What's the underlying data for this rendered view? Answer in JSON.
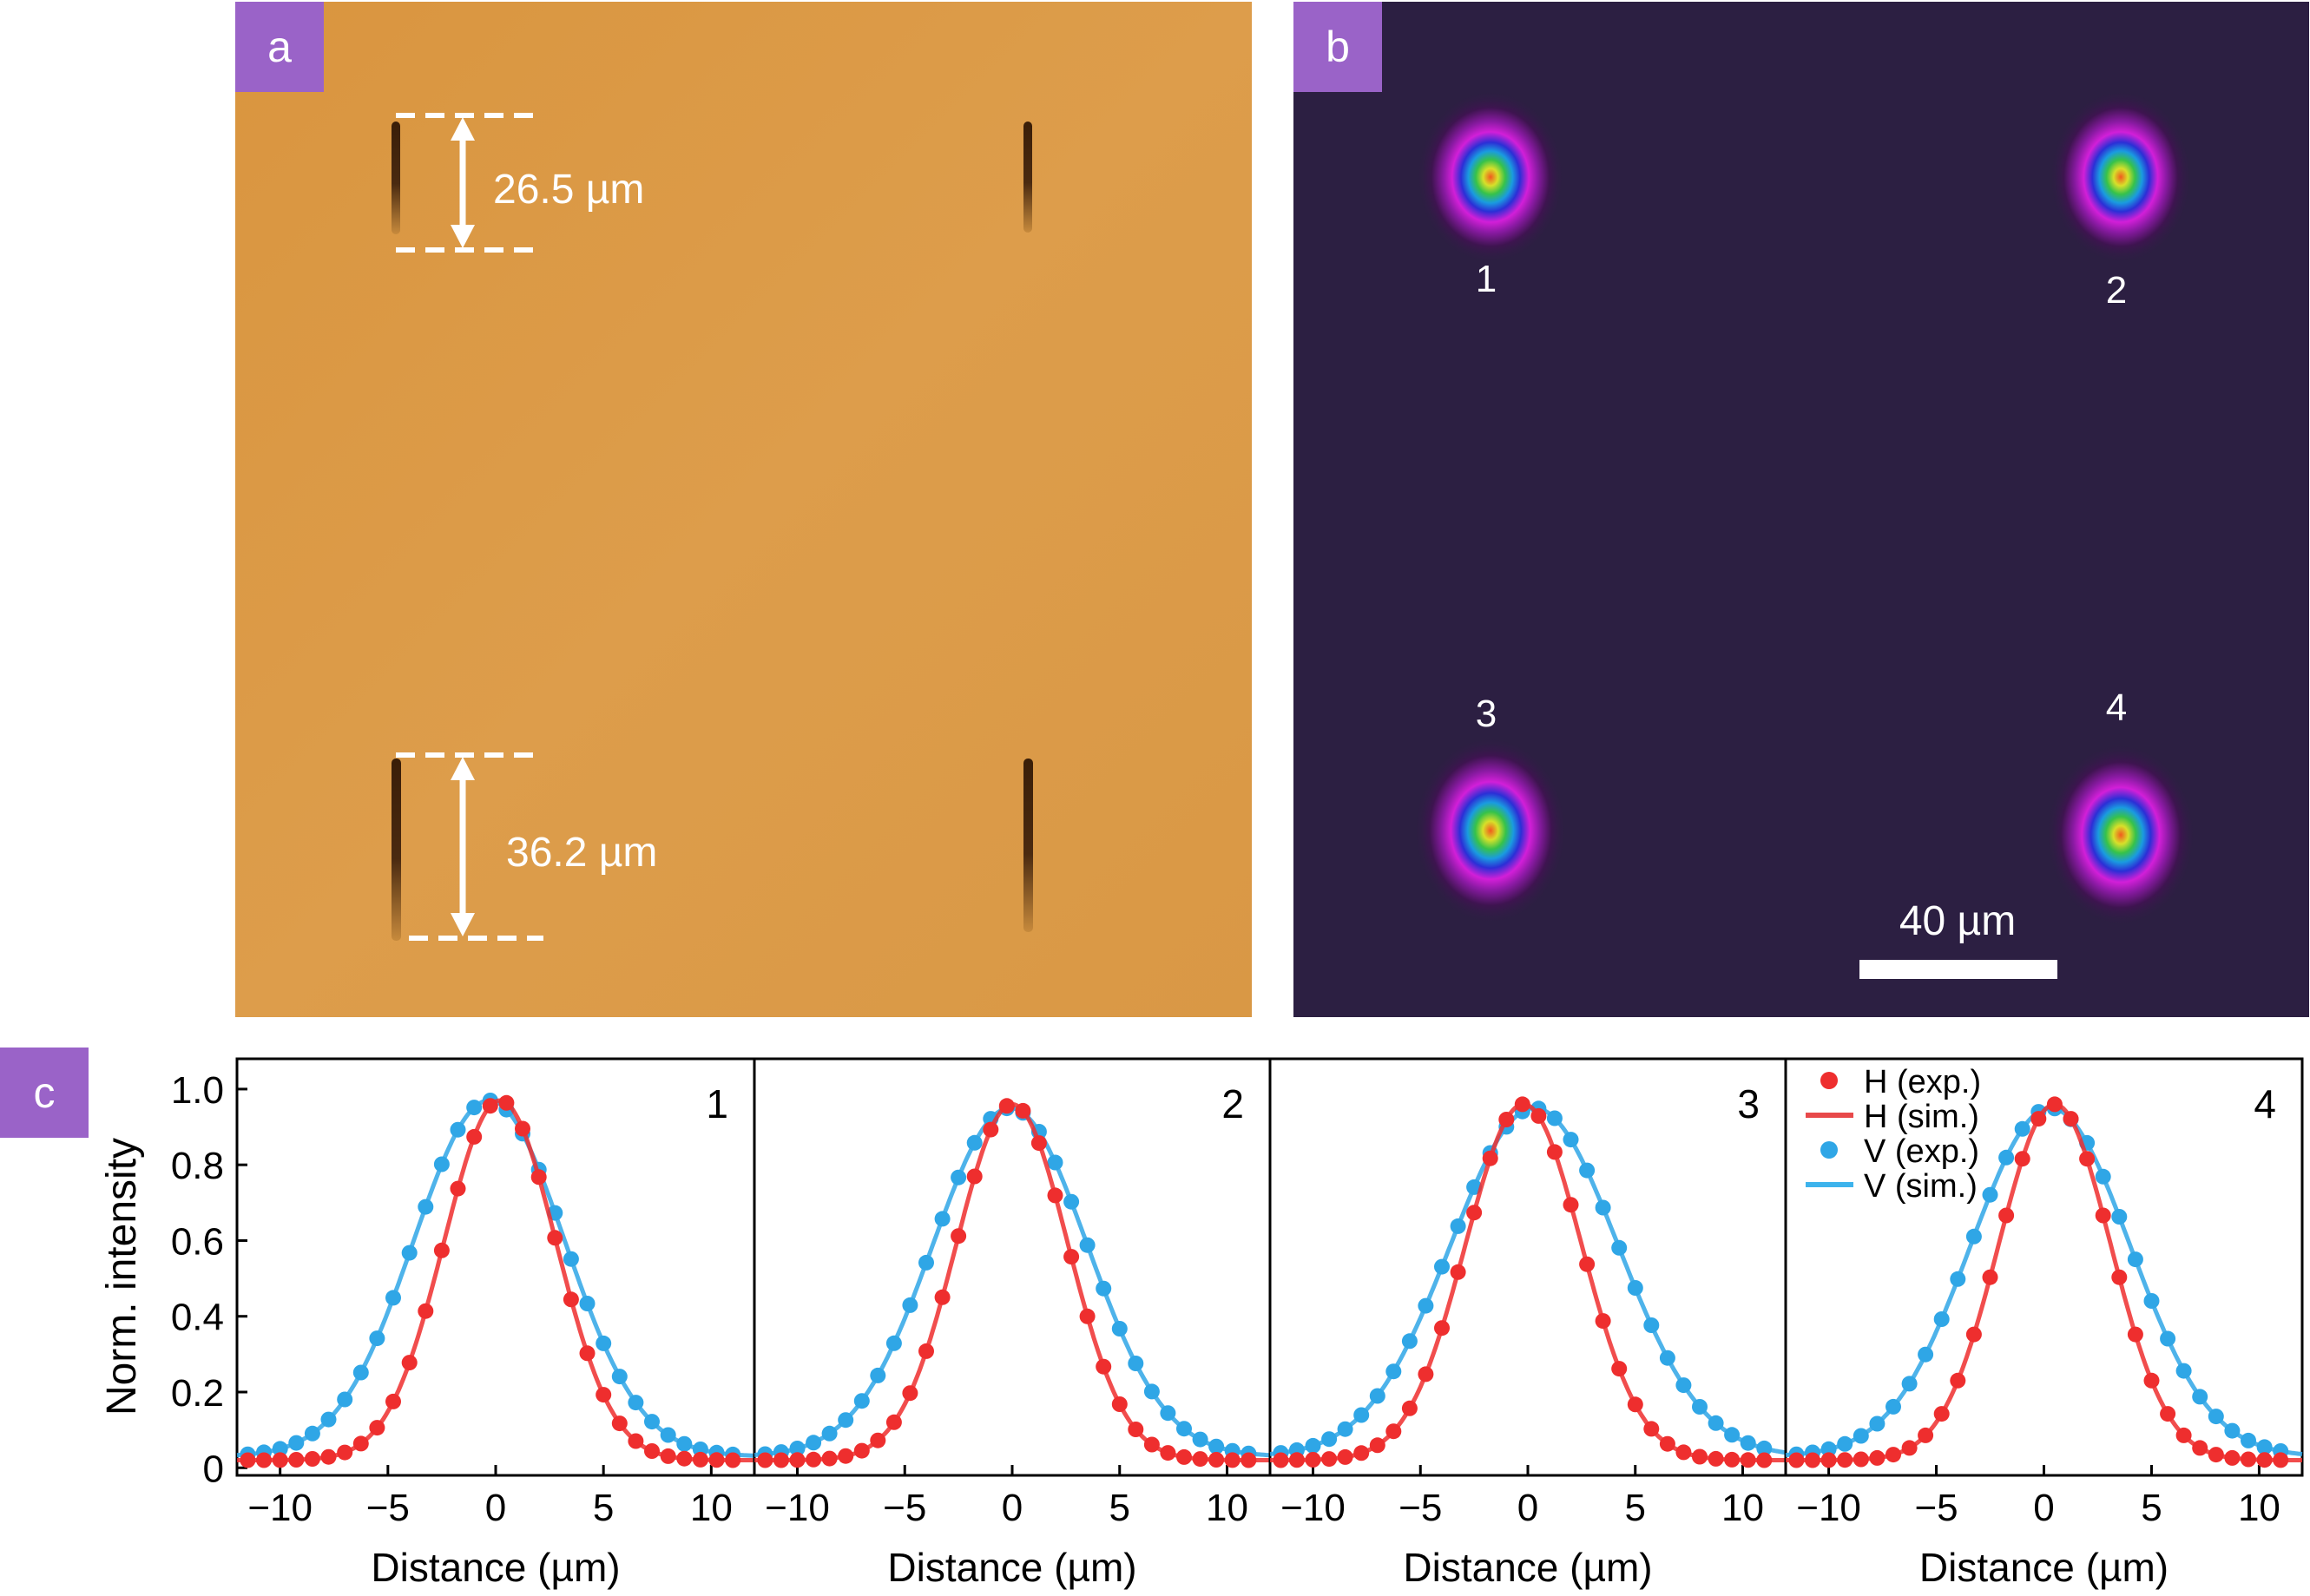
{
  "panels": {
    "a": {
      "label": "a",
      "annotations": [
        "26.5 µm",
        "36.2 µm"
      ],
      "background_color": "#dc9a46"
    },
    "b": {
      "label": "b",
      "spot_labels": [
        "1",
        "2",
        "3",
        "4"
      ],
      "scale_bar": "40 µm",
      "background_color": "#2c1f42"
    },
    "c": {
      "label": "c"
    }
  },
  "chart_data": {
    "type": "scatter",
    "ylabel": "Norm. intensity",
    "xlabel": "Distance (µm)",
    "xlim": [
      -12,
      12
    ],
    "ylim": [
      -0.02,
      1.08
    ],
    "x_ticks": [
      "−10",
      "−5",
      "0",
      "5",
      "10"
    ],
    "x_tick_values": [
      -10,
      -5,
      0,
      5,
      10
    ],
    "y_ticks": [
      "0",
      "0.2",
      "0.4",
      "0.6",
      "0.8",
      "1.0"
    ],
    "y_tick_values": [
      0,
      0.2,
      0.4,
      0.6,
      0.8,
      1.0
    ],
    "legend": {
      "placement": "top-left of subplot 4",
      "entries": [
        {
          "label": "H (exp.)",
          "kind": "marker",
          "color": "#ee2e2e"
        },
        {
          "label": "H (sim.)",
          "kind": "line",
          "color": "#e8494a"
        },
        {
          "label": "V (exp.)",
          "kind": "marker",
          "color": "#2fa6e6"
        },
        {
          "label": "V (sim.)",
          "kind": "line",
          "color": "#3db3ec"
        }
      ]
    },
    "colors": {
      "H": "#ee2e2e",
      "V": "#2fa6e6"
    },
    "subplots": [
      {
        "label": "1",
        "H": {
          "center": 0.2,
          "sigma": 2.6,
          "amplitude": 0.97,
          "baseline": 0.02
        },
        "V": {
          "center": -0.3,
          "sigma": 3.5,
          "amplitude": 0.97,
          "baseline": 0.03
        }
      },
      {
        "label": "2",
        "H": {
          "center": 0.0,
          "sigma": 2.6,
          "amplitude": 0.96,
          "baseline": 0.02
        },
        "V": {
          "center": -0.1,
          "sigma": 3.6,
          "amplitude": 0.95,
          "baseline": 0.03
        }
      },
      {
        "label": "3",
        "H": {
          "center": -0.2,
          "sigma": 2.7,
          "amplitude": 0.96,
          "baseline": 0.02
        },
        "V": {
          "center": 0.3,
          "sigma": 3.9,
          "amplitude": 0.95,
          "baseline": 0.03
        }
      },
      {
        "label": "4",
        "H": {
          "center": 0.5,
          "sigma": 2.6,
          "amplitude": 0.96,
          "baseline": 0.02
        },
        "V": {
          "center": 0.3,
          "sigma": 3.7,
          "amplitude": 0.95,
          "baseline": 0.03
        }
      }
    ]
  }
}
